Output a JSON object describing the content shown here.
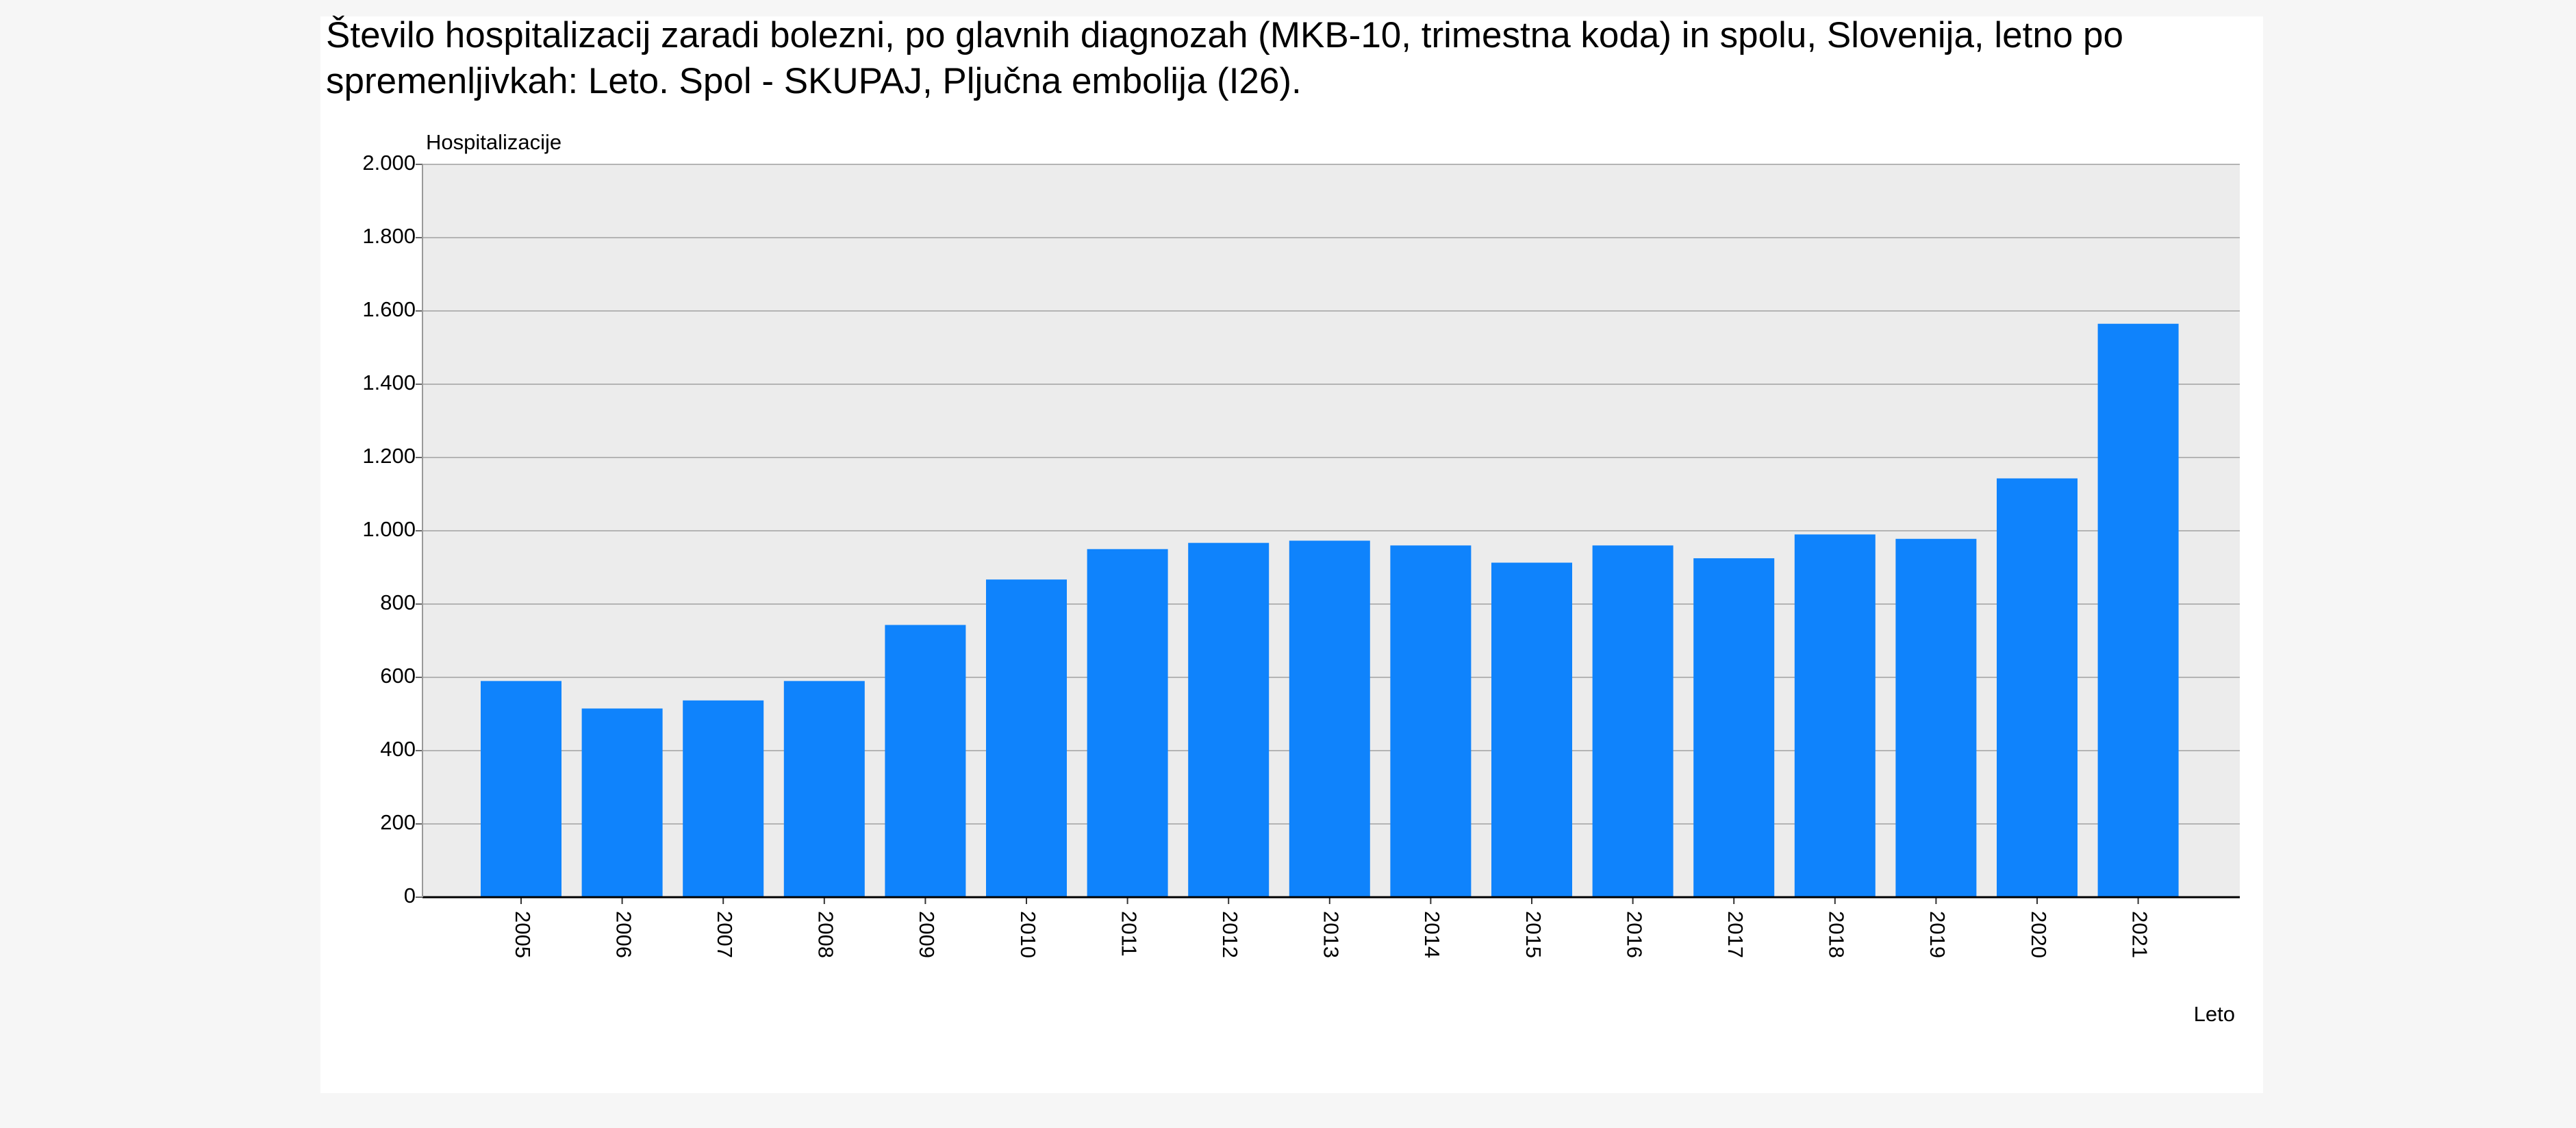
{
  "chart_data": {
    "type": "bar",
    "title": "Število hospitalizacij zaradi bolezni, po glavnih diagnozah (MKB-10, trimestna koda) in spolu, Slovenija, letno po spremenljivkah: Leto. Spol - SKUPAJ, Pljučna embolija (I26).",
    "y_label": "Hospitalizacije",
    "x_label": "Leto",
    "categories": [
      "2005",
      "2006",
      "2007",
      "2008",
      "2009",
      "2010",
      "2011",
      "2012",
      "2013",
      "2014",
      "2015",
      "2016",
      "2017",
      "2018",
      "2019",
      "2020",
      "2021"
    ],
    "values": [
      590,
      515,
      537,
      590,
      743,
      867,
      950,
      967,
      973,
      960,
      913,
      960,
      925,
      990,
      978,
      1143,
      1565
    ],
    "color": "#0f83fc",
    "ylim": [
      0,
      2000
    ],
    "yticks": [
      0,
      200,
      400,
      600,
      800,
      {
        "value": 1000,
        "label": "1.000"
      },
      {
        "value": 1200,
        "label": "1.200"
      },
      {
        "value": 1400,
        "label": "1.400"
      },
      {
        "value": 1600,
        "label": "1.600"
      },
      {
        "value": 1800,
        "label": "1.800"
      },
      {
        "value": 2000,
        "label": "2.000"
      }
    ],
    "grid": true
  }
}
